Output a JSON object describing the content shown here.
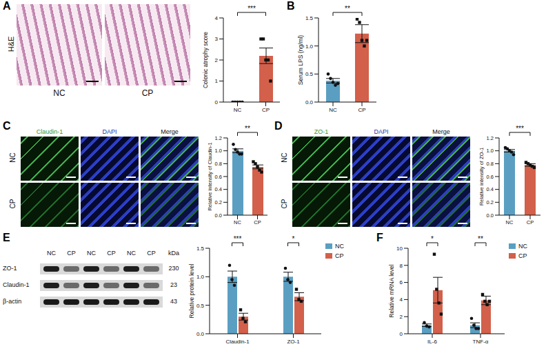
{
  "chart_data": [
    {
      "panel": "A",
      "type": "bar",
      "y_label": "Colonic atrophy score",
      "categories": [
        "NC",
        "CP"
      ],
      "values": [
        0,
        2.2
      ],
      "errors": [
        0,
        0.37
      ],
      "points": [
        [
          0,
          0,
          0,
          0,
          0
        ],
        [
          3,
          3,
          2,
          2,
          1
        ]
      ],
      "colors": [
        "#5a9fc2",
        "#d2604b"
      ],
      "ylim": [
        0,
        4
      ],
      "yticks": [
        0,
        1,
        2,
        3,
        4
      ],
      "annotations": [
        {
          "text": "***",
          "between": [
            "NC",
            "CP"
          ]
        }
      ]
    },
    {
      "panel": "B",
      "type": "bar",
      "y_label": "Serum LPS (ng/ml)",
      "categories": [
        "NC",
        "CP"
      ],
      "values": [
        0.38,
        1.22
      ],
      "errors": [
        0.04,
        0.16
      ],
      "points": [
        [
          0.5,
          0.42,
          0.35,
          0.3,
          0.33
        ],
        [
          1.48,
          1.42,
          1.1,
          1.0,
          1.1
        ]
      ],
      "colors": [
        "#5a9fc2",
        "#d2604b"
      ],
      "ylim": [
        0,
        1.5
      ],
      "yticks": [
        {
          "value": 0,
          "label": "0.0"
        },
        0.5,
        {
          "value": 1,
          "label": "1.0"
        },
        1.5
      ],
      "annotations": [
        {
          "text": "**",
          "between": [
            "NC",
            "CP"
          ]
        }
      ]
    },
    {
      "panel": "C",
      "type": "bar",
      "y_label": "Relative intensity of Claudin-1",
      "categories": [
        "NC",
        "CP"
      ],
      "values": [
        1.0,
        0.75
      ],
      "errors": [
        0.03,
        0.03
      ],
      "points": [
        [
          1.1,
          1.02,
          0.98,
          0.95,
          0.95
        ],
        [
          0.83,
          0.8,
          0.75,
          0.7,
          0.67
        ]
      ],
      "colors": [
        "#5a9fc2",
        "#d2604b"
      ],
      "ylim": [
        0,
        1.2
      ],
      "yticks": [
        {
          "value": 0,
          "label": "0.0"
        },
        0.2,
        0.4,
        0.6,
        0.8,
        {
          "value": 1,
          "label": "1.0"
        },
        1.2
      ],
      "annotations": [
        {
          "text": "**",
          "between": [
            "NC",
            "CP"
          ]
        }
      ]
    },
    {
      "panel": "D",
      "type": "bar",
      "y_label": "Relative intensity of ZO-1",
      "categories": [
        "NC",
        "CP"
      ],
      "values": [
        1.0,
        0.78
      ],
      "errors": [
        0.02,
        0.02
      ],
      "points": [
        [
          1.05,
          1.03,
          1.0,
          0.98,
          0.94
        ],
        [
          0.82,
          0.8,
          0.78,
          0.76,
          0.74
        ]
      ],
      "colors": [
        "#5a9fc2",
        "#d2604b"
      ],
      "ylim": [
        0,
        1.2
      ],
      "yticks": [
        {
          "value": 0,
          "label": "0.0"
        },
        0.2,
        0.4,
        0.6,
        0.8,
        {
          "value": 1,
          "label": "1.0"
        },
        1.2
      ],
      "annotations": [
        {
          "text": "***",
          "between": [
            "NC",
            "CP"
          ]
        }
      ]
    },
    {
      "panel": "E",
      "type": "bar",
      "y_label": "Relative protein level",
      "categories": [
        "Claudin-1",
        "ZO-1"
      ],
      "series": [
        {
          "name": "NC",
          "color": "#5a9fc2",
          "values": [
            1.0,
            1.0
          ],
          "errors": [
            0.1,
            0.08
          ],
          "points": [
            [
              1.2,
              0.95,
              0.85
            ],
            [
              1.15,
              0.95,
              0.9
            ]
          ]
        },
        {
          "name": "CP",
          "color": "#d2604b",
          "values": [
            0.3,
            0.65
          ],
          "errors": [
            0.06,
            0.07
          ],
          "points": [
            [
              0.42,
              0.27,
              0.21
            ],
            [
              0.78,
              0.6,
              0.57
            ]
          ]
        }
      ],
      "ylim": [
        0,
        1.5
      ],
      "yticks": [
        {
          "value": 0,
          "label": "0.0"
        },
        0.5,
        {
          "value": 1,
          "label": "1.0"
        },
        1.5
      ],
      "legend": "right",
      "annotations": [
        {
          "text": "***",
          "category": "Claudin-1"
        },
        {
          "text": "*",
          "category": "ZO-1"
        }
      ]
    },
    {
      "panel": "F",
      "type": "bar",
      "y_label": "Relative mRNA level",
      "categories": [
        "IL-6",
        "TNF-α"
      ],
      "series": [
        {
          "name": "NC",
          "color": "#5a9fc2",
          "values": [
            1.0,
            1.0
          ],
          "errors": [
            0.15,
            0.28
          ],
          "points": [
            [
              1.3,
              0.9,
              0.8
            ],
            [
              1.8,
              1.0,
              0.6,
              0.6
            ]
          ]
        },
        {
          "name": "CP",
          "color": "#d2604b",
          "values": [
            5.1,
            3.9
          ],
          "errors": [
            1.5,
            0.5
          ],
          "points": [
            [
              9.3,
              5.2,
              3.6,
              2.3
            ],
            [
              4.6,
              3.8,
              3.4,
              3.8
            ]
          ]
        }
      ],
      "ylim": [
        0,
        10
      ],
      "yticks": [
        0,
        2,
        4,
        6,
        8,
        10
      ],
      "legend": "right",
      "annotations": [
        {
          "text": "*",
          "category": "IL-6"
        },
        {
          "text": "**",
          "category": "TNF-α"
        }
      ]
    }
  ],
  "image_panels": {
    "A": {
      "row_label": "H&E",
      "column_labels": [
        "NC",
        "CP"
      ]
    },
    "C": {
      "column_labels": [
        "Claudin-1",
        "DAPI",
        "Merge"
      ],
      "row_labels": [
        "NC",
        "CP"
      ]
    },
    "D": {
      "column_labels": [
        "ZO-1",
        "DAPI",
        "Merge"
      ],
      "row_labels": [
        "NC",
        "CP"
      ]
    },
    "E": {
      "lane_labels": [
        "NC",
        "CP",
        "NC",
        "CP",
        "NC",
        "CP"
      ],
      "bands": [
        {
          "name": "ZO-1",
          "kda": 230
        },
        {
          "name": "Claudin-1",
          "kda": 23
        },
        {
          "name": "β-actin",
          "kda": 43
        }
      ],
      "unit": "kDa"
    }
  }
}
